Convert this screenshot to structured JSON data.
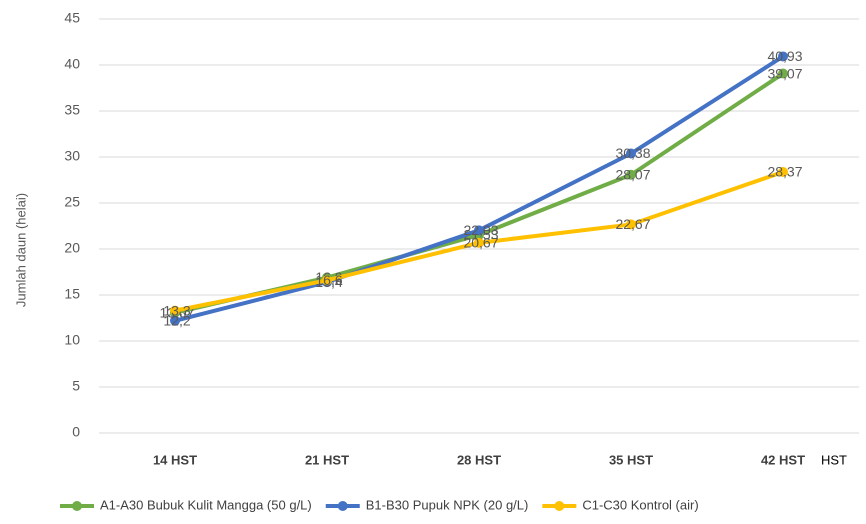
{
  "chart_data": {
    "type": "line",
    "categories": [
      "14 HST",
      "21 HST",
      "28 HST",
      "35 HST",
      "42 HST"
    ],
    "x_label": "HST",
    "y_label": "Jumlah daun (helai)",
    "ylim": [
      0,
      45
    ],
    "yticks": [
      0,
      5,
      10,
      15,
      20,
      25,
      30,
      35,
      40,
      45
    ],
    "grid": true,
    "legend": "bottom",
    "series": [
      {
        "name": "A1-A30 Bubuk Kulit Mangga (50 g/L)",
        "color": "#70ad47",
        "values": [
          13.07,
          16.9,
          21.53,
          28.07,
          39.07
        ],
        "value_labels": [
          "13,07",
          "16,9",
          "21,53",
          "28,07",
          "39,07"
        ]
      },
      {
        "name": "B1-B30 Pupuk NPK (20 g/L)",
        "color": "#4472c4",
        "values": [
          12.2,
          16.4,
          22.03,
          30.38,
          40.93
        ],
        "value_labels": [
          "12,2",
          "16,4",
          "22,03",
          "30,38",
          "40,93"
        ]
      },
      {
        "name": "C1-C30 Kontrol (air)",
        "color": "#ffc000",
        "values": [
          13.3,
          16.6,
          20.67,
          22.67,
          28.37
        ],
        "value_labels": [
          "13,3",
          "16,6",
          "20,67",
          "22,67",
          "28,37"
        ]
      }
    ]
  }
}
